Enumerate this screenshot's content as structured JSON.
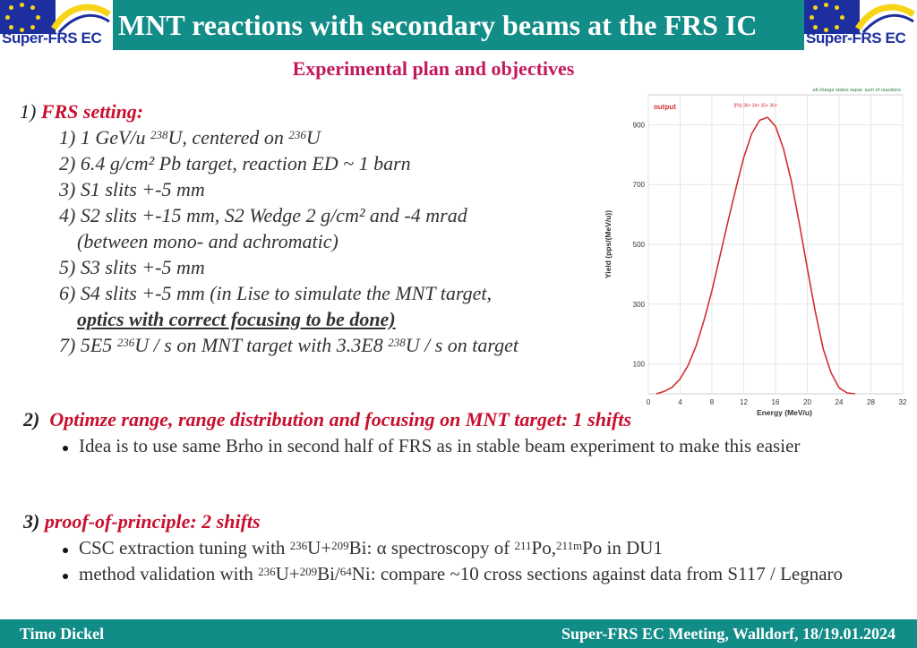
{
  "header": {
    "title": "MNT reactions with secondary beams at the FRS IC",
    "logo_text": "Super-FRS EC"
  },
  "subtitle": "Experimental plan and objectives",
  "section1": {
    "num": "1)",
    "heading": "FRS setting:",
    "items": [
      {
        "pre": "1) 1 GeV/u ",
        "sup1": "238",
        "mid": "U, centered on ",
        "sup2": "236",
        "post": "U"
      },
      {
        "text": "2) 6.4 g/cm² Pb target, reaction ED ~ 1 barn"
      },
      {
        "text": "3) S1 slits +-5 mm"
      },
      {
        "text": "4) S2 slits +-15 mm, S2 Wedge 2 g/cm² and -4 mrad"
      },
      {
        "text": "(between mono- and achromatic)"
      },
      {
        "text": "5) S3 slits +-5 mm"
      },
      {
        "text": "6) S4 slits +-5 mm (in Lise to simulate the MNT target,"
      },
      {
        "text": "optics with correct focusing to be done)"
      },
      {
        "pre": "7) 5E5 ",
        "sup1": "236",
        "mid": "U / s on MNT target with 3.3E8 ",
        "sup2": "238",
        "post": "U / s on target"
      }
    ]
  },
  "section2": {
    "num": "2)",
    "heading": "Optimze range, range distribution and focusing on MNT target: 1 shifts",
    "bullets": [
      "Idea is to use same Brho in second half of FRS as in stable beam experiment to make this easier"
    ]
  },
  "section3": {
    "num": "3)",
    "heading": "proof-of-principle: 2 shifts",
    "bullet1": {
      "a": "CSC extraction tuning with ",
      "s1": "236",
      "b": "U+",
      "s2": "209",
      "c": "Bi: α spectroscopy of ",
      "s3": "211",
      "d": "Po,",
      "s4": "211m",
      "e": "Po in DU1"
    },
    "bullet2": {
      "a": "method validation with ",
      "s1": "236",
      "b": "U+",
      "s2": "209",
      "c": "Bi/",
      "s3": "64",
      "d": "Ni: compare ~10 cross sections against data from S117 / Legnaro"
    }
  },
  "footer": {
    "left": "Timo Dickel",
    "right": "Super-FRS EC Meeting, Walldorf, 18/19.01.2024"
  },
  "chart_data": {
    "type": "line",
    "title": "output",
    "corner_note": "all charge states separ. sum of reactions",
    "series_label": "[Pb] 36+ 34+ 35+ 36+",
    "xlabel": "Energy (MeV/u)",
    "ylabel": "Yield (pps/(MeV/u))",
    "xlim": [
      0,
      32
    ],
    "ylim": [
      0,
      1000
    ],
    "xticks": [
      0,
      4,
      8,
      12,
      16,
      20,
      24,
      28,
      32
    ],
    "yticks": [
      100,
      300,
      500,
      700,
      900
    ],
    "color": "#d32f2f",
    "x": [
      1,
      2,
      3,
      4,
      5,
      6,
      7,
      8,
      9,
      10,
      11,
      12,
      13,
      14,
      15,
      16,
      17,
      18,
      19,
      20,
      21,
      22,
      23,
      24,
      25,
      26
    ],
    "y": [
      0,
      8,
      22,
      50,
      95,
      160,
      245,
      345,
      460,
      575,
      685,
      790,
      870,
      915,
      925,
      895,
      820,
      710,
      570,
      420,
      275,
      150,
      70,
      20,
      3,
      0
    ]
  }
}
